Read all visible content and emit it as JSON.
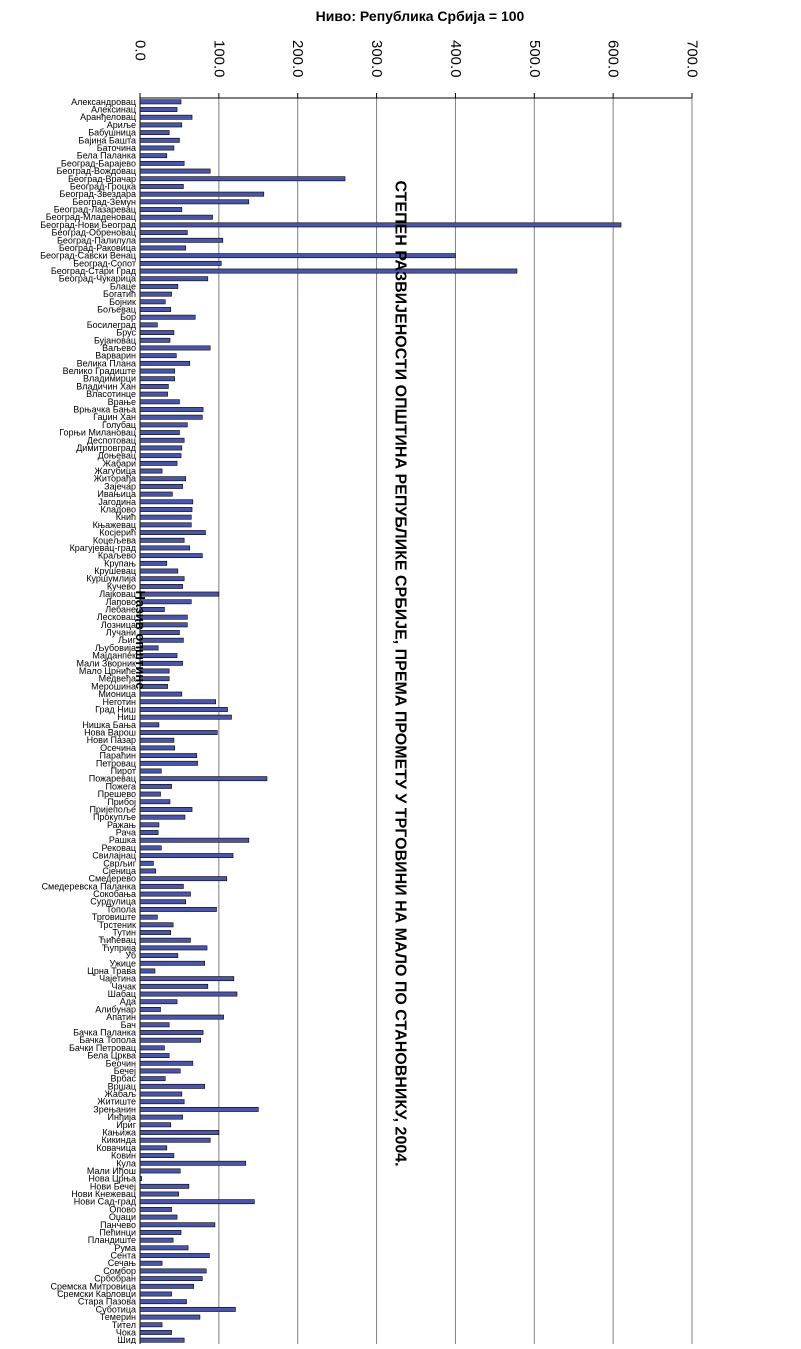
{
  "chart_data": {
    "type": "bar",
    "orientation": "horizontal",
    "title": "СТЕПЕН РАЗВИЈЕНОСТИ ОПШТИНА РЕПУБЛИКЕ СРБИЈЕ, ПРЕМА ПРОМЕТУ У ТРГОВИНИ НА МАЛО ПО СТАНОВНИКУ, 2004.",
    "xlabel": "Ниво: Република Србија = 100",
    "ylabel": "Назив општине",
    "xlim": [
      0,
      700
    ],
    "xticks": [
      "0.0",
      "100.0",
      "200.0",
      "300.0",
      "400.0",
      "500.0",
      "600.0",
      "700.0"
    ],
    "grid": true,
    "legend": "none",
    "bar_color": "#4b55a8",
    "categories": [
      "Александровац",
      "Алексинац",
      "Аранђеловац",
      "Ариље",
      "Бабушница",
      "Бајина Башта",
      "Баточина",
      "Бела Паланка",
      "Београд-Барајево",
      "Београд-Вождовац",
      "Београд-Врачар",
      "Београд-Гроцка",
      "Београд-Звездара",
      "Београд-Земун",
      "Београд-Лазаревац",
      "Београд-Младеновац",
      "Београд-Нови Београд",
      "Београд-Обреновац",
      "Београд-Палилула",
      "Београд-Раковица",
      "Београд-Савски Венац",
      "Београд-Сопот",
      "Београд-Стари Град",
      "Београд-Чукарица",
      "Блаце",
      "Богатић",
      "Бојник",
      "Бољевац",
      "Бор",
      "Босилеград",
      "Брус",
      "Бујановац",
      "Ваљево",
      "Варварин",
      "Велика Плана",
      "Велико Градиште",
      "Владимирци",
      "Владичин Хан",
      "Власотинце",
      "Врање",
      "Врњачка Бања",
      "Гаџин Хан",
      "Голубац",
      "Горњи Милановац",
      "Деспотовац",
      "Димитровград",
      "Доњевац",
      "Жабари",
      "Жагубица",
      "Житорађа",
      "Зајечар",
      "Ивањица",
      "Јагодина",
      "Кладово",
      "Кнић",
      "Књажевац",
      "Косјерић",
      "Коцељева",
      "Крагујевац-град",
      "Краљево",
      "Крупањ",
      "Крушевац",
      "Куршумлија",
      "Кучево",
      "Лајковац",
      "Лапово",
      "Лебане",
      "Лесковац",
      "Лозница",
      "Лучани",
      "Љиг",
      "Љубовија",
      "Мајданпек",
      "Мали Зворник",
      "Мало Црниће",
      "Медвеђа",
      "Мерошина",
      "Мионица",
      "Неготин",
      "Град Ниш",
      "Ниш",
      "Нишка Бања",
      "Нова Варош",
      "Нови Пазар",
      "Осечина",
      "Параћин",
      "Петровац",
      "Пирот",
      "Пожаревац",
      "Пожега",
      "Прешево",
      "Прибој",
      "Пријепоље",
      "Прокупље",
      "Ражањ",
      "Рача",
      "Рашка",
      "Рековац",
      "Свилајнац",
      "Сврљиг",
      "Сјеница",
      "Смедерево",
      "Смедеревска Паланка",
      "Сокобања",
      "Сурдулица",
      "Топола",
      "Трговиште",
      "Трстеник",
      "Тутин",
      "Ћићевац",
      "Ћуприја",
      "Уб",
      "Ужице",
      "Црна Трава",
      "Чајетина",
      "Чачак",
      "Шабац",
      "Ада",
      "Алибунар",
      "Апатин",
      "Бач",
      "Бачка Паланка",
      "Бачка Топола",
      "Бачки Петровац",
      "Бела Црква",
      "Беочин",
      "Бечеј",
      "Врбас",
      "Вршац",
      "Жабаљ",
      "Житиште",
      "Зрењанин",
      "Инђија",
      "Ириг",
      "Кањижа",
      "Кикинда",
      "Ковачица",
      "Ковин",
      "Кула",
      "Мали Иђош",
      "Нова Црња",
      "Нови Бечеј",
      "Нови Кнежевац",
      "Нови Сад-град",
      "Опово",
      "Оџаци",
      "Панчево",
      "Пећинци",
      "Пландиште",
      "Рума",
      "Сента",
      "Сечањ",
      "Сомбор",
      "Србобран",
      "Сремска Митровица",
      "Сремски Карловци",
      "Стара Пазова",
      "Суботица",
      "Темерин",
      "Тител",
      "Чока",
      "Шид"
    ],
    "values": [
      52,
      47,
      66,
      53,
      37,
      50,
      43,
      34,
      56,
      89,
      260,
      55,
      157,
      138,
      53,
      92,
      610,
      60,
      105,
      58,
      400,
      103,
      478,
      86,
      48,
      40,
      32,
      39,
      70,
      22,
      43,
      38,
      89,
      46,
      63,
      44,
      44,
      36,
      35,
      50,
      80,
      79,
      60,
      50,
      56,
      53,
      52,
      47,
      28,
      58,
      54,
      41,
      67,
      66,
      65,
      65,
      83,
      56,
      63,
      79,
      34,
      48,
      56,
      54,
      100,
      65,
      31,
      60,
      60,
      50,
      55,
      23,
      47,
      54,
      37,
      37,
      35,
      53,
      96,
      111,
      116,
      24,
      98,
      43,
      44,
      72,
      73,
      27,
      161,
      40,
      26,
      38,
      66,
      57,
      24,
      23,
      138,
      27,
      118,
      17,
      20,
      110,
      55,
      64,
      58,
      97,
      22,
      42,
      39,
      64,
      85,
      48,
      82,
      19,
      119,
      86,
      123,
      47,
      26,
      106,
      37,
      80,
      77,
      31,
      37,
      67,
      51,
      32,
      82,
      53,
      56,
      150,
      54,
      39,
      100,
      89,
      34,
      43,
      134,
      51,
      2,
      62,
      49,
      145,
      40,
      47,
      95,
      52,
      42,
      61,
      88,
      28,
      84,
      79,
      68,
      40,
      59,
      121,
      76,
      28,
      40,
      56
    ]
  }
}
